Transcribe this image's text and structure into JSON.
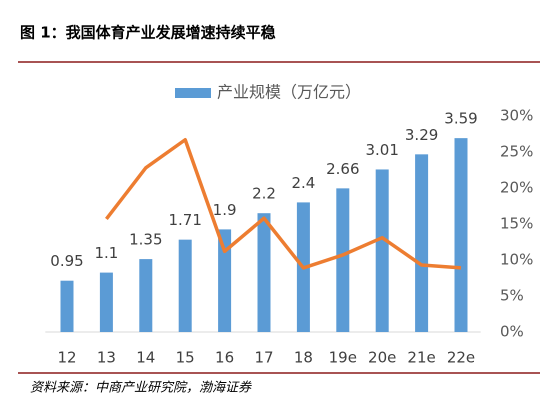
{
  "title": "图 1：我国体育产业发展增速持续平稳",
  "source": "资料来源：中商产业研究院，渤海证券",
  "chart_data": {
    "type": "bar",
    "categories": [
      "12",
      "13",
      "14",
      "15",
      "16",
      "17",
      "18",
      "19e",
      "20e",
      "21e",
      "22e"
    ],
    "series": [
      {
        "name": "产业规模（万亿元）",
        "color": "#5b9bd5",
        "values": [
          0.95,
          1.1,
          1.35,
          1.71,
          1.9,
          2.2,
          2.4,
          2.66,
          3.01,
          3.29,
          3.59
        ]
      },
      {
        "color": "#ed7d31",
        "axis": "y2",
        "values": [
          null,
          15.7,
          22.8,
          26.7,
          11.2,
          15.8,
          8.9,
          10.7,
          13.1,
          9.3,
          8.9
        ]
      }
    ],
    "ylim": [
      0,
      4
    ],
    "y2lim": [
      0,
      30
    ],
    "y2ticks": [
      {
        "value": 0,
        "label": "0%"
      },
      {
        "value": 5,
        "label": "5%"
      },
      {
        "value": 10,
        "label": "10%"
      },
      {
        "value": 15,
        "label": "15%"
      },
      {
        "value": 20,
        "label": "20%"
      },
      {
        "value": 25,
        "label": "25%"
      },
      {
        "value": 30,
        "label": "30%"
      }
    ],
    "legend": "top"
  }
}
